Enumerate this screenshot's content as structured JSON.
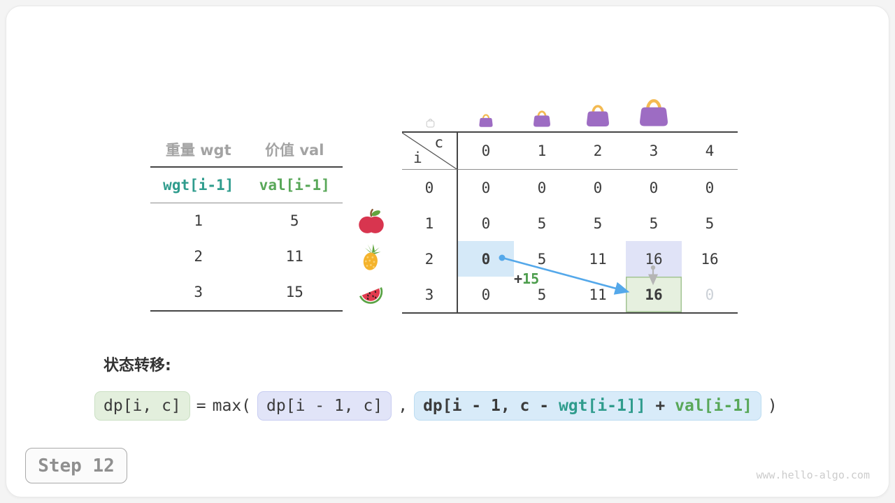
{
  "page": {
    "step_label": "Step 12",
    "watermark": "www.hello-algo.com"
  },
  "weights_table": {
    "headers": [
      "重量 wgt",
      "价值 val"
    ],
    "code_row": [
      "wgt[i-1]",
      "val[i-1]"
    ],
    "items": [
      {
        "wgt": "1",
        "val": "5"
      },
      {
        "wgt": "2",
        "val": "11"
      },
      {
        "wgt": "3",
        "val": "15"
      }
    ]
  },
  "item_icons": [
    "apple-icon",
    "pineapple-icon",
    "watermelon-icon"
  ],
  "dp_table": {
    "corner_top": "c",
    "corner_side": "i",
    "col_labels": [
      "0",
      "1",
      "2",
      "3",
      "4"
    ],
    "capacity_icons": [
      "empty-bag-icon",
      "bag-icon",
      "bag-icon",
      "bag-icon",
      "bag-icon"
    ],
    "rows": [
      {
        "label": "0",
        "cells": [
          {
            "v": "0"
          },
          {
            "v": "0"
          },
          {
            "v": "0"
          },
          {
            "v": "0"
          },
          {
            "v": "0"
          }
        ]
      },
      {
        "label": "1",
        "cells": [
          {
            "v": "0"
          },
          {
            "v": "5"
          },
          {
            "v": "5"
          },
          {
            "v": "5"
          },
          {
            "v": "5"
          }
        ]
      },
      {
        "label": "2",
        "cells": [
          {
            "v": "0",
            "hl": "blue",
            "bold": true
          },
          {
            "v": "5"
          },
          {
            "v": "11"
          },
          {
            "v": "16",
            "hl": "lavender"
          },
          {
            "v": "16"
          }
        ]
      },
      {
        "label": "3",
        "cells": [
          {
            "v": "0"
          },
          {
            "v": "5"
          },
          {
            "v": "11"
          },
          {
            "v": "16",
            "hl": "green",
            "bold": true
          },
          {
            "v": "0",
            "muted": true
          }
        ]
      }
    ],
    "annotation": {
      "plus": "+",
      "value": "15"
    }
  },
  "formula": {
    "label": "状态转移:",
    "lhs": "dp[i, c]",
    "eq": "=",
    "max_open": "max(",
    "arg1": "dp[i - 1, c]",
    "comma": ",",
    "arg2_segments": [
      {
        "text": "dp[i - 1, c - "
      },
      {
        "text": "wgt[i-1]]"
      },
      {
        "text": " + "
      },
      {
        "text": "val[i-1]"
      }
    ],
    "close": ")"
  },
  "colors": {
    "teal": "#2f9c8d",
    "green": "#58a758",
    "arrow_blue": "#54a8ea",
    "arrow_gray": "#b5b5b5",
    "bag_purple": "#9d6cc3",
    "bag_handle": "#f3ba52",
    "hl_blue_bg": "#d5e9f8",
    "hl_lavender_bg": "#e0e3f7",
    "hl_green_bg": "#e6f0df",
    "hl_green_border": "#a3c493"
  }
}
